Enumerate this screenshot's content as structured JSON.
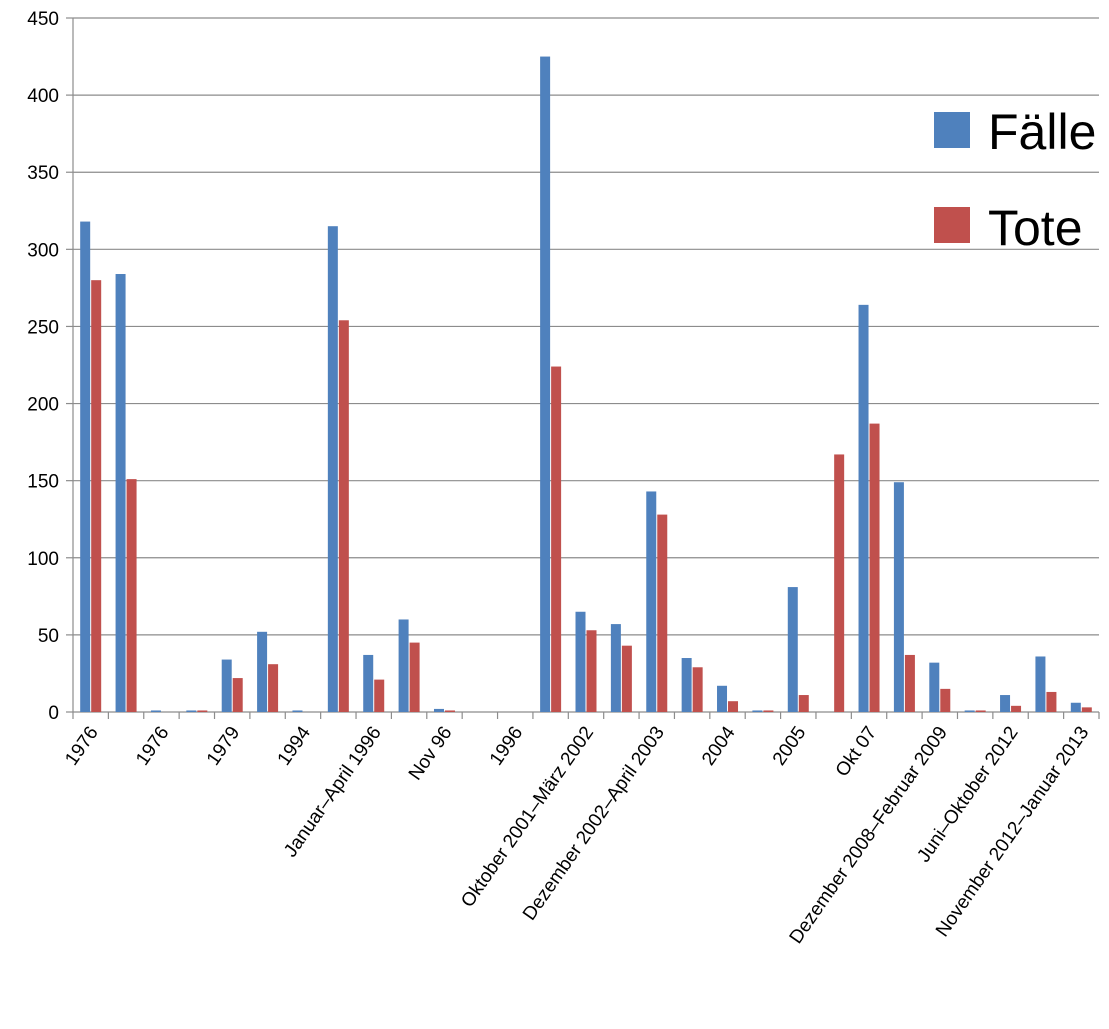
{
  "chart_data": {
    "type": "bar",
    "categories": [
      "1976",
      "",
      "1976",
      "",
      "1979",
      "",
      "1994",
      "",
      "Januar–April 1996",
      "",
      "Nov 96",
      "",
      "1996",
      "",
      "Oktober 2001–März 2002",
      "",
      "Dezember 2002–April 2003",
      "",
      "2004",
      "",
      "2005",
      "",
      "Okt 07",
      "",
      "Dezember 2008–Februar 2009",
      "",
      "Juni–Oktober 2012",
      "",
      "November 2012–Januar 2013"
    ],
    "series": [
      {
        "name": "Fälle",
        "color": "#4F81BD",
        "values": [
          318,
          284,
          1,
          1,
          34,
          52,
          1,
          315,
          37,
          60,
          2,
          0,
          0,
          425,
          65,
          57,
          143,
          35,
          17,
          1,
          81,
          0,
          264,
          149,
          32,
          1,
          11,
          36,
          6
        ]
      },
      {
        "name": "Tote",
        "color": "#C0504D",
        "values": [
          280,
          151,
          0,
          1,
          22,
          31,
          0,
          254,
          21,
          45,
          1,
          0,
          0,
          224,
          53,
          43,
          128,
          29,
          7,
          1,
          11,
          167,
          187,
          37,
          15,
          1,
          4,
          13,
          3
        ]
      }
    ],
    "y_ticks": [
      "0",
      "50",
      "100",
      "150",
      "200",
      "250",
      "300",
      "350",
      "400",
      "450"
    ],
    "ylim": [
      0,
      450
    ],
    "grid": true,
    "legend_position": "right"
  }
}
